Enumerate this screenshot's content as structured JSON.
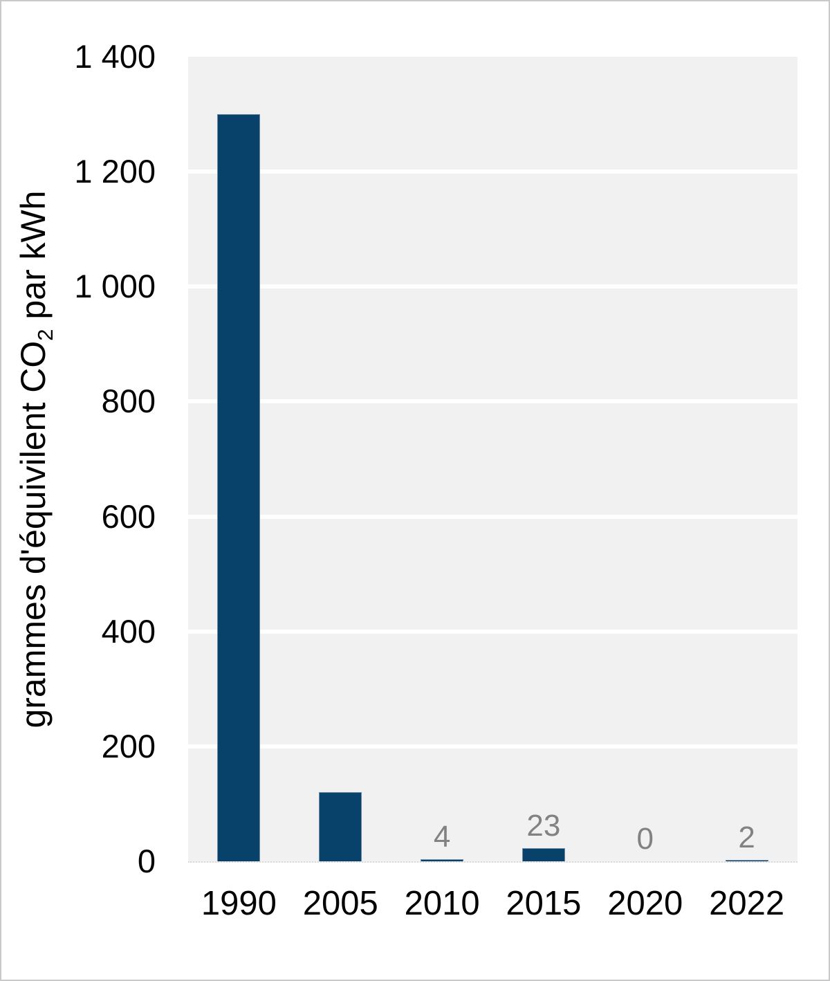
{
  "figure": {
    "background": "#ffffff",
    "frame_border_color": "#c9c9c9"
  },
  "chart_data": {
    "type": "bar",
    "title": "",
    "categories": [
      "1990",
      "2005",
      "2010",
      "2015",
      "2020",
      "2022"
    ],
    "values": [
      1300,
      120,
      4,
      23,
      0,
      2
    ],
    "data_labels": [
      "",
      "",
      "4",
      "23",
      "0",
      "2"
    ],
    "xlabel": "",
    "ylabel": "grammes d'équivilent CO₂ par kWh",
    "ylabel_parts": {
      "prefix": "grammes d'équivilent CO",
      "subscript": "2",
      "suffix": " par kWh"
    },
    "ylim": [
      0,
      1400
    ],
    "ytick_step": 200,
    "yticks": [
      "0",
      "200",
      "400",
      "600",
      "800",
      "1 000",
      "1 200",
      "1 400"
    ],
    "grid": true,
    "legend": null,
    "colors": {
      "bar": "#08426b",
      "bar_border": "#6b8ca8",
      "plot_background": "#f1f1f2",
      "gridline": "#ffffff",
      "axis_text": "#000000",
      "data_label": "#828282"
    }
  }
}
